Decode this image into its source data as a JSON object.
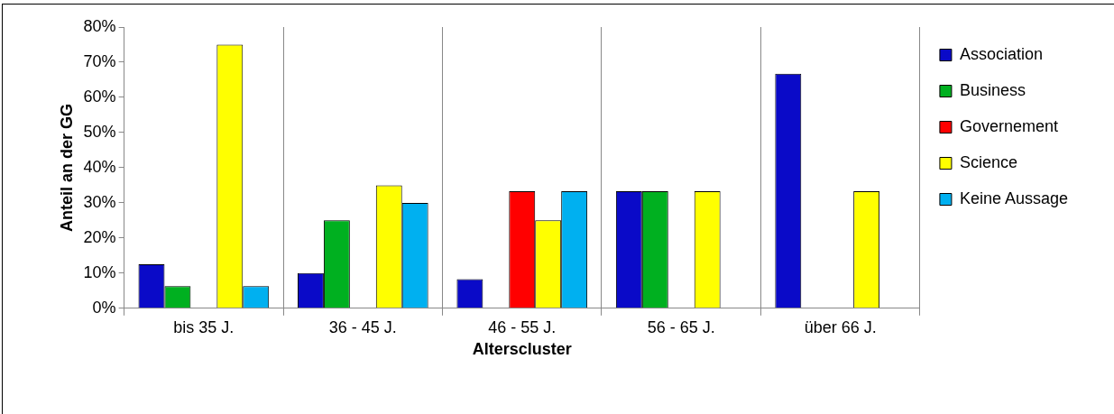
{
  "chart_data": {
    "type": "bar",
    "xlabel": "Alterscluster",
    "ylabel": "Anteil an der GG",
    "categories": [
      "bis 35 J.",
      "36 - 45 J.",
      "46 - 55 J.",
      "56 - 65 J.",
      "über 66 J."
    ],
    "series": [
      {
        "name": "Association",
        "color": "#0a0ac8",
        "values": [
          12.5,
          10,
          8.3,
          33.3,
          66.7
        ]
      },
      {
        "name": "Business",
        "color": "#00b020",
        "values": [
          6.3,
          25,
          0,
          33.3,
          0
        ]
      },
      {
        "name": "Governement",
        "color": "#ff0000",
        "values": [
          0,
          0,
          33.3,
          0,
          0
        ]
      },
      {
        "name": "Science",
        "color": "#ffff00",
        "values": [
          75,
          35,
          25,
          33.3,
          33.3
        ]
      },
      {
        "name": "Keine Aussage",
        "color": "#00b0f0",
        "values": [
          6.3,
          30,
          33.3,
          0,
          0
        ]
      }
    ],
    "ylim": [
      0,
      80
    ],
    "yticks": [
      {
        "value": 0,
        "label": "0%"
      },
      {
        "value": 10,
        "label": "10%"
      },
      {
        "value": 20,
        "label": "20%"
      },
      {
        "value": 30,
        "label": "30%"
      },
      {
        "value": 40,
        "label": "40%"
      },
      {
        "value": 50,
        "label": "50%"
      },
      {
        "value": 60,
        "label": "60%"
      },
      {
        "value": 70,
        "label": "70%"
      },
      {
        "value": 80,
        "label": "80%"
      }
    ],
    "grid": "x",
    "legend": "right"
  }
}
